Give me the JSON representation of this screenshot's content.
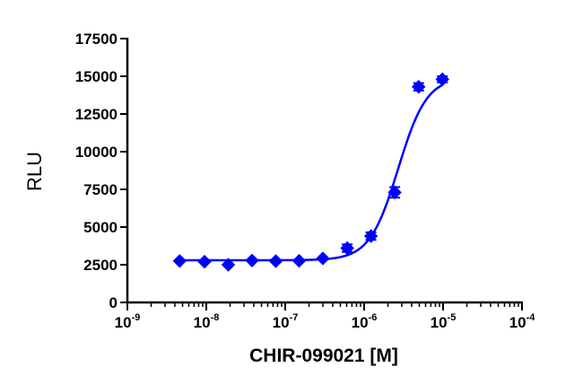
{
  "chart_data": {
    "type": "scatter",
    "title": "",
    "xlabel": "CHIR-099021 [M]",
    "ylabel": "RLU",
    "x_scale": "log",
    "xlim": [
      1e-09,
      0.0001
    ],
    "ylim": [
      0,
      17500
    ],
    "grid": false,
    "legend": "none",
    "colors": {
      "series": "#0000ff",
      "axis": "#000000"
    },
    "y_ticks": [
      {
        "value": 0,
        "label": "0"
      },
      {
        "value": 2500,
        "label": "2500"
      },
      {
        "value": 5000,
        "label": "5000"
      },
      {
        "value": 7500,
        "label": "7500"
      },
      {
        "value": 10000,
        "label": "10000"
      },
      {
        "value": 12500,
        "label": "12500"
      },
      {
        "value": 15000,
        "label": "15000"
      },
      {
        "value": 17500,
        "label": "17500"
      }
    ],
    "x_ticks": [
      {
        "value": 1e-09,
        "base": "10",
        "exp": "-9"
      },
      {
        "value": 1e-08,
        "base": "10",
        "exp": "-8"
      },
      {
        "value": 1e-07,
        "base": "10",
        "exp": "-7"
      },
      {
        "value": 1e-06,
        "base": "10",
        "exp": "-6"
      },
      {
        "value": 1e-05,
        "base": "10",
        "exp": "-5"
      },
      {
        "value": 0.0001,
        "base": "10",
        "exp": "-4"
      }
    ],
    "series": [
      {
        "marker": "diamond",
        "points": [
          {
            "x": 4.6e-09,
            "y": 2750
          },
          {
            "x": 9.5e-09,
            "y": 2700
          },
          {
            "x": 1.9e-08,
            "y": 2500
          },
          {
            "x": 3.8e-08,
            "y": 2780
          },
          {
            "x": 7.6e-08,
            "y": 2740
          },
          {
            "x": 1.5e-07,
            "y": 2760
          },
          {
            "x": 3e-07,
            "y": 2920
          },
          {
            "x": 6.1e-07,
            "y": 3600,
            "err": 250
          },
          {
            "x": 1.22e-06,
            "y": 4400,
            "err": 250
          },
          {
            "x": 2.44e-06,
            "y": 7300,
            "err": 350
          },
          {
            "x": 4.9e-06,
            "y": 14300,
            "err": 250
          },
          {
            "x": 9.8e-06,
            "y": 14800,
            "err": 200
          }
        ],
        "fit": {
          "model": "sigmoidal-dose-response",
          "bottom": 2800,
          "top": 14950,
          "ec50": 2.7e-06,
          "hill": 2.4
        }
      }
    ]
  }
}
